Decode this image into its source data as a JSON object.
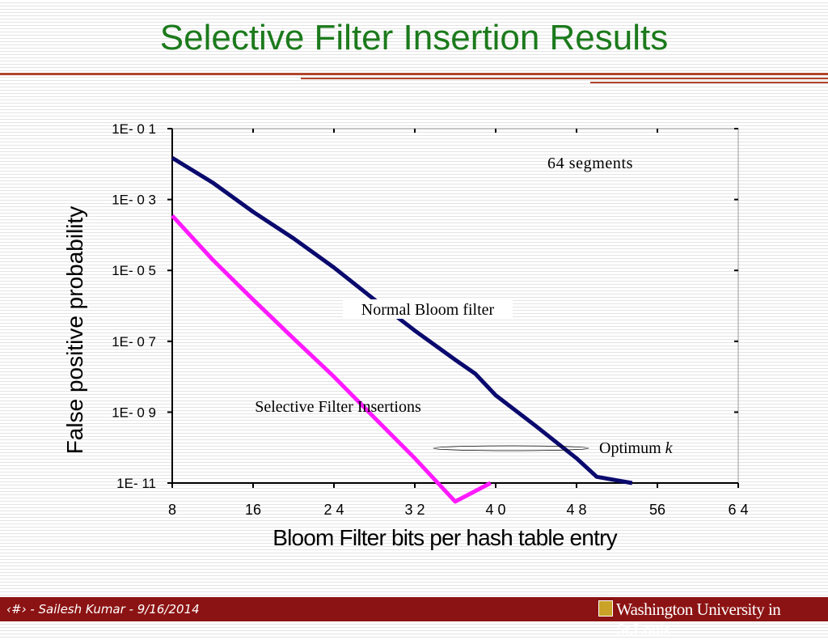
{
  "slide": {
    "title": "Selective Filter Insertion Results"
  },
  "footer": {
    "text": "‹#› - Sailesh Kumar - 9/16/2014",
    "brand": "Washington University in St.Louis"
  },
  "colors": {
    "title": "#1c7a1c",
    "rule": "#b0452d",
    "footer_bg": "#8c1313",
    "normal_series": "#0a0a6e",
    "selective_series": "#ff1aff"
  },
  "chart_data": {
    "type": "line",
    "xlabel": "Bloom Filter bits per hash table entry",
    "ylabel": "False positive probability",
    "x_ticks": [
      "8",
      "16",
      "2 4",
      "3 2",
      "4 0",
      "4 8",
      "56",
      "6 4"
    ],
    "x_tick_values": [
      8,
      16,
      24,
      32,
      40,
      48,
      56,
      64
    ],
    "y_ticks": [
      "1E- 0 1",
      "1E- 0 3",
      "1E- 0 5",
      "1E- 0 7",
      "1E- 0 9",
      "1E- 11"
    ],
    "y_tick_exponents": [
      -1,
      -3,
      -5,
      -7,
      -9,
      -11
    ],
    "xlim": [
      8,
      64
    ],
    "ylim": [
      1e-11,
      0.1
    ],
    "y_scale": "log",
    "grid": false,
    "series": [
      {
        "label": "Normal Bloom filter",
        "color": "#0a0a6e",
        "points": [
          [
            8,
            0.015
          ],
          [
            12,
            0.003
          ],
          [
            16,
            0.00045
          ],
          [
            20,
            8e-05
          ],
          [
            24,
            1.2e-05
          ],
          [
            28,
            1.5e-06
          ],
          [
            32,
            2e-07
          ],
          [
            36,
            3e-08
          ],
          [
            38,
            1.2e-08
          ],
          [
            40,
            3e-09
          ],
          [
            44,
            4e-10
          ],
          [
            48,
            5e-11
          ],
          [
            50,
            1.5e-11
          ],
          [
            53.5,
            1e-11
          ]
        ]
      },
      {
        "label": "Selective Filter Insertions",
        "color": "#ff1aff",
        "points": [
          [
            8,
            0.00035
          ],
          [
            12,
            2e-05
          ],
          [
            16,
            1.5e-06
          ],
          [
            20,
            1.2e-07
          ],
          [
            24,
            1e-08
          ],
          [
            28,
            7e-10
          ],
          [
            32,
            5e-11
          ],
          [
            36,
            3e-12
          ],
          [
            39.5,
            1e-11
          ]
        ]
      }
    ],
    "annotations": {
      "segments": "64 segments",
      "normal": "Normal Bloom filter",
      "selective": "Selective Filter Insertions",
      "optimum_prefix": "Optimum ",
      "optimum_k": "k"
    }
  }
}
